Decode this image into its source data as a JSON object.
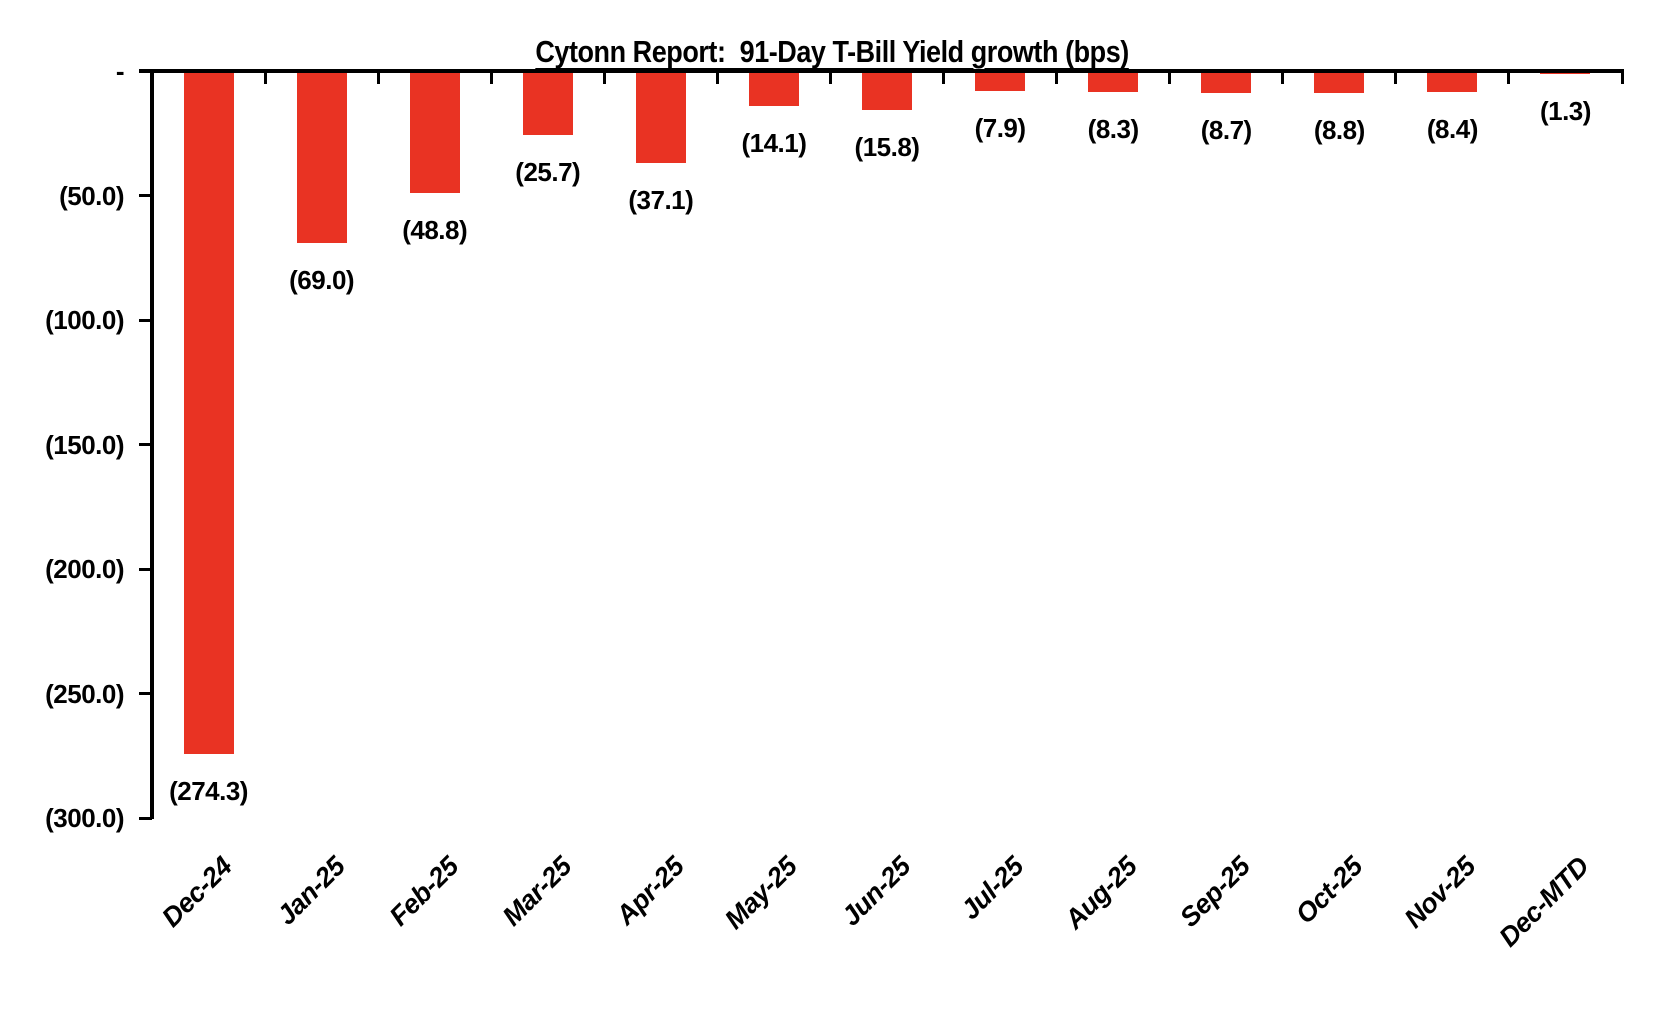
{
  "chart_data": {
    "type": "bar",
    "title": "Cytonn Report:  91-Day T-Bill Yield growth (bps)",
    "categories": [
      "Dec-24",
      "Jan-25",
      "Feb-25",
      "Mar-25",
      "Apr-25",
      "May-25",
      "Jun-25",
      "Jul-25",
      "Aug-25",
      "Sep-25",
      "Oct-25",
      "Nov-25",
      "Dec-MTD"
    ],
    "values": [
      -274.3,
      -69.0,
      -48.8,
      -25.7,
      -37.1,
      -14.1,
      -15.8,
      -7.9,
      -8.3,
      -8.7,
      -8.8,
      -8.4,
      -1.3
    ],
    "value_labels": [
      "(274.3)",
      "(69.0)",
      "(48.8)",
      "(25.7)",
      "(37.1)",
      "(14.1)",
      "(15.8)",
      "(7.9)",
      "(8.3)",
      "(8.7)",
      "(8.8)",
      "(8.4)",
      "(1.3)"
    ],
    "xlabel": "",
    "ylabel": "",
    "ylim": [
      -300,
      0
    ],
    "ytick_interval": 50,
    "ytick_labels": [
      "-",
      "(50.0)",
      "(100.0)",
      "(150.0)",
      "(200.0)",
      "(250.0)",
      "(300.0)"
    ],
    "bar_color": "#E93323",
    "axis_color": "#000000",
    "text_color": "#000000",
    "background": "#FFFFFF",
    "grid": false,
    "legend": "none",
    "bar_direction": "downward-from-zero",
    "data_label_position": "below-bar-end"
  }
}
